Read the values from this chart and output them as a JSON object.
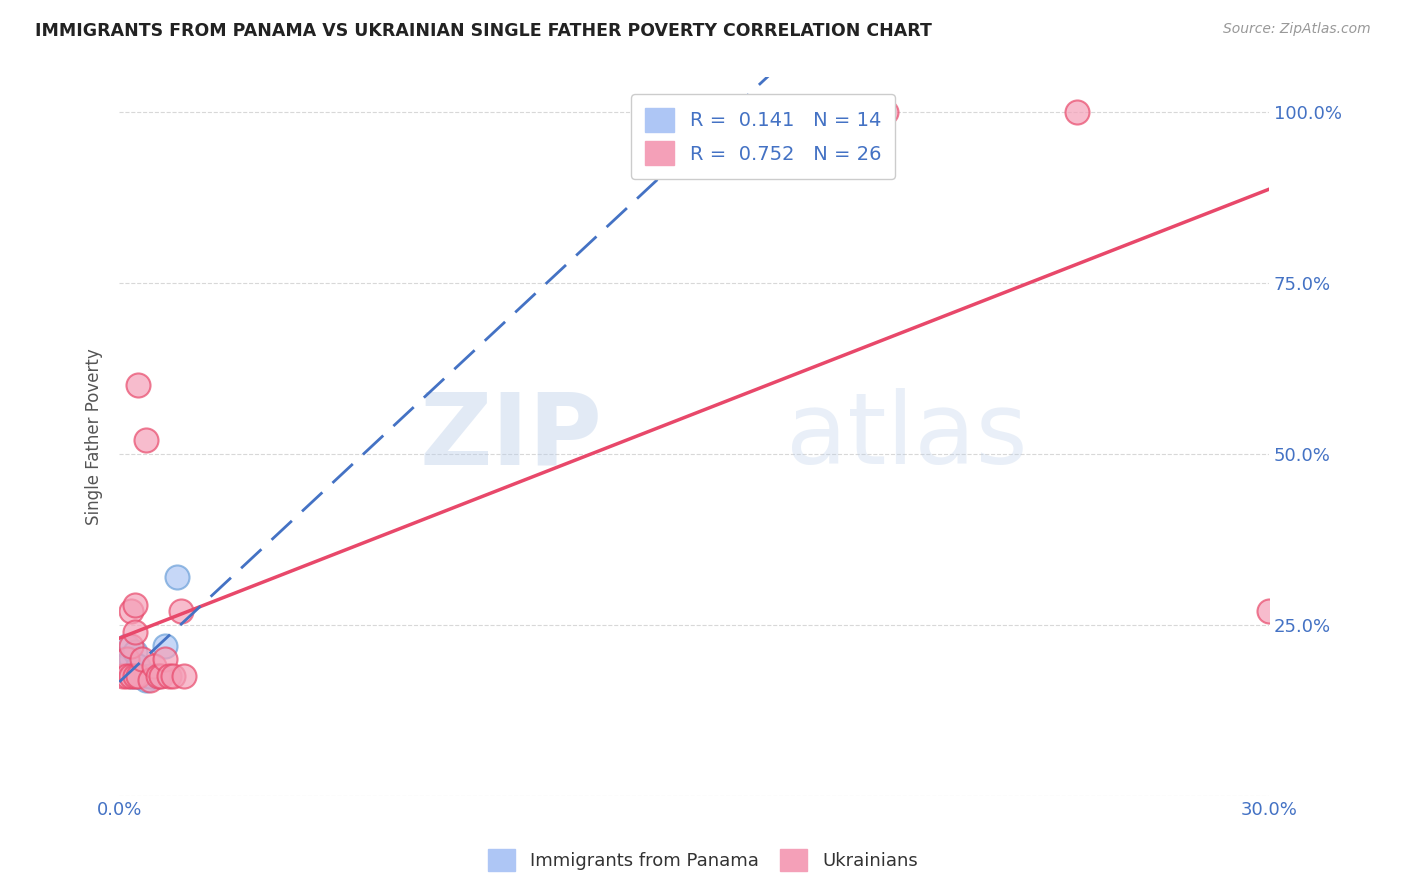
{
  "title": "IMMIGRANTS FROM PANAMA VS UKRAINIAN SINGLE FATHER POVERTY CORRELATION CHART",
  "source": "Source: ZipAtlas.com",
  "ylabel": "Single Father Poverty",
  "watermark_zip": "ZIP",
  "watermark_atlas": "atlas",
  "panama_x": [
    0.001,
    0.002,
    0.003,
    0.003,
    0.004,
    0.004,
    0.005,
    0.005,
    0.006,
    0.007,
    0.008,
    0.01,
    0.012,
    0.015
  ],
  "panama_y": [
    0.2,
    0.22,
    0.2,
    0.175,
    0.21,
    0.175,
    0.175,
    0.19,
    0.175,
    0.17,
    0.175,
    0.175,
    0.22,
    0.32
  ],
  "ukraine_x": [
    0.001,
    0.002,
    0.002,
    0.003,
    0.003,
    0.003,
    0.004,
    0.004,
    0.004,
    0.005,
    0.005,
    0.006,
    0.007,
    0.008,
    0.009,
    0.01,
    0.011,
    0.012,
    0.013,
    0.014,
    0.016,
    0.017,
    0.18,
    0.2,
    0.25,
    0.3
  ],
  "ukraine_y": [
    0.175,
    0.2,
    0.175,
    0.175,
    0.22,
    0.27,
    0.24,
    0.28,
    0.175,
    0.175,
    0.6,
    0.2,
    0.52,
    0.17,
    0.19,
    0.175,
    0.175,
    0.2,
    0.175,
    0.175,
    0.27,
    0.175,
    1.0,
    1.0,
    1.0,
    0.27
  ],
  "panama_color": "#aec6f5",
  "ukraine_color": "#f4a0b8",
  "panama_edge_color": "#6a9fd8",
  "ukraine_edge_color": "#e8486a",
  "panama_line_color": "#4472c4",
  "ukraine_line_color": "#e8486a",
  "xlim_min": 0.0,
  "xlim_max": 0.3,
  "ylim_min": 0.0,
  "ylim_max": 1.05,
  "background_color": "#ffffff",
  "grid_color": "#d8d8d8"
}
